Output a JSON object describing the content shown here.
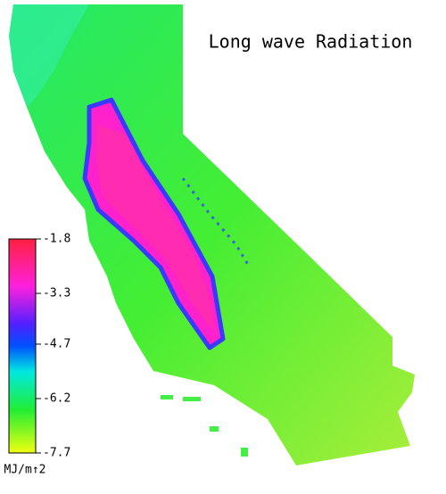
{
  "title": "Long wave Radiation",
  "colorbar": {
    "lim": [
      -7.7,
      -1.8
    ],
    "ticks": [
      -1.8,
      -3.3,
      -4.7,
      -6.2,
      -7.7
    ],
    "unit": "MJ/m↑2"
  }
}
